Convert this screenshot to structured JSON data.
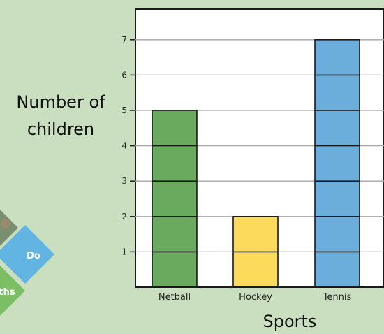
{
  "chart_data": {
    "type": "bar",
    "categories": [
      "Netball",
      "Hockey",
      "Tennis"
    ],
    "values": [
      5,
      2,
      7
    ],
    "xlabel": "Sports",
    "ylabel_lines": [
      "Number of",
      "children"
    ],
    "ylim": [
      0,
      7.75
    ],
    "yticks": [
      1,
      2,
      3,
      4,
      5,
      6,
      7
    ],
    "grid": true,
    "bar_colors": [
      "#6aaa5e",
      "#fcdb5c",
      "#6baddb"
    ],
    "bar_segments": "one horizontal line per unit"
  },
  "logo": {
    "badge_labels": [
      "Do",
      "ths"
    ],
    "colors": {
      "blue": "#62b5e2",
      "green": "#7cbe63",
      "dark_green": "#4e8d44"
    }
  }
}
